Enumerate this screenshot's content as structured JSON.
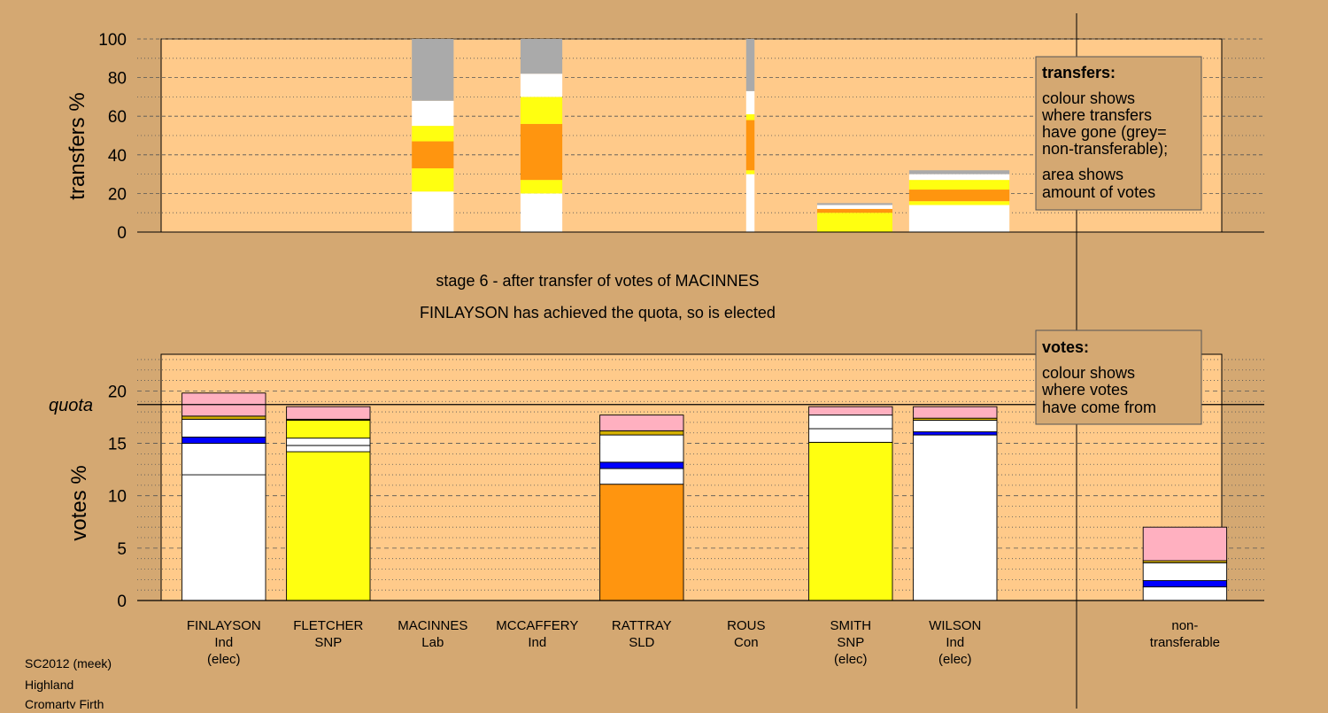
{
  "colors": {
    "page_bg": "#D4A872",
    "plot_bg": "#FFCA8A",
    "white": "#FFFFFF",
    "yellow": "#FFFF10",
    "orange": "#FF950F",
    "blue": "#0000FF",
    "pink": "#FFB0C0",
    "gold": "#D4B000",
    "grey": "#AAAAAA"
  },
  "titles": {
    "stage_line": "stage 6 - after transfer of votes of MACINNES",
    "status_line": "FINLAYSON has achieved the quota, so is elected"
  },
  "footer": [
    "SC2012 (meek)",
    "Highland",
    "Cromarty Firth"
  ],
  "legends": {
    "transfers": {
      "heading": "transfers:",
      "lines1": [
        "colour shows",
        "where transfers",
        "have gone (grey=",
        "non-transferable);"
      ],
      "lines2": [
        "area shows",
        "amount of votes"
      ]
    },
    "votes": {
      "heading": "votes:",
      "lines1": [
        "colour shows",
        "where votes",
        "have come from"
      ]
    }
  },
  "candidates": [
    {
      "name": "FINLAYSON",
      "party": "Ind",
      "note": "(elec)"
    },
    {
      "name": "FLETCHER",
      "party": "SNP",
      "note": ""
    },
    {
      "name": "MACINNES",
      "party": "Lab",
      "note": ""
    },
    {
      "name": "MCCAFFERY",
      "party": "Ind",
      "note": ""
    },
    {
      "name": "RATTRAY",
      "party": "SLD",
      "note": ""
    },
    {
      "name": "ROUS",
      "party": "Con",
      "note": ""
    },
    {
      "name": "SMITH",
      "party": "SNP",
      "note": "(elec)"
    },
    {
      "name": "WILSON",
      "party": "Ind",
      "note": "(elec)"
    },
    {
      "name": "non-",
      "party": "transferable",
      "note": ""
    }
  ],
  "chart_data": [
    {
      "type": "bar",
      "ylabel": "transfers %",
      "ylim": [
        0,
        100
      ],
      "yticks": [
        0,
        20,
        40,
        60,
        80,
        100
      ],
      "bars": [
        {
          "id": "macinnes-col1",
          "left": 3.0,
          "width": 0.5,
          "segments": [
            [
              "white",
              0,
              21
            ],
            [
              "yellow",
              21,
              33
            ],
            [
              "orange",
              33,
              47
            ],
            [
              "yellow",
              47,
              55
            ],
            [
              "white",
              55,
              68
            ],
            [
              "grey",
              68,
              100
            ]
          ]
        },
        {
          "id": "macinnes-col2",
          "left": 4.3,
          "width": 0.5,
          "segments": [
            [
              "white",
              0,
              20
            ],
            [
              "yellow",
              20,
              27
            ],
            [
              "orange",
              27,
              56
            ],
            [
              "yellow",
              56,
              70
            ],
            [
              "white",
              70,
              82
            ],
            [
              "grey",
              82,
              100
            ]
          ]
        },
        {
          "id": "macinnes-col3",
          "left": 7.0,
          "width": 0.1,
          "segments": [
            [
              "white",
              0,
              30
            ],
            [
              "yellow",
              30,
              32
            ],
            [
              "orange",
              32,
              58
            ],
            [
              "yellow",
              58,
              61
            ],
            [
              "white",
              61,
              73
            ],
            [
              "grey",
              73,
              100
            ]
          ]
        },
        {
          "id": "macinnes-col4",
          "left": 7.85,
          "width": 0.9,
          "segments": [
            [
              "yellow",
              0,
              10
            ],
            [
              "orange",
              10,
              12
            ],
            [
              "white",
              12,
              14
            ],
            [
              "grey",
              14,
              15
            ]
          ]
        },
        {
          "id": "macinnes-col5",
          "left": 8.95,
          "width": 1.2,
          "segments": [
            [
              "white",
              0,
              14
            ],
            [
              "yellow",
              14,
              16
            ],
            [
              "orange",
              16,
              22
            ],
            [
              "yellow",
              22,
              27
            ],
            [
              "white",
              27,
              30
            ],
            [
              "grey",
              30,
              32
            ]
          ]
        }
      ]
    },
    {
      "type": "bar",
      "ylabel": "votes %",
      "ylim": [
        0,
        23.5
      ],
      "yticks": [
        0,
        5,
        10,
        15,
        20
      ],
      "quota": 18.7,
      "quota_label": "quota",
      "bars": [
        {
          "id": "finlayson",
          "left": 0.25,
          "width": 1.0,
          "segments": [
            [
              "white",
              0,
              12
            ],
            [
              "white",
              12,
              15
            ],
            [
              "blue",
              15,
              15.6
            ],
            [
              "white",
              15.6,
              17.3
            ],
            [
              "gold",
              17.3,
              17.6
            ],
            [
              "pink",
              17.6,
              19.8
            ]
          ]
        },
        {
          "id": "fletcher",
          "left": 1.5,
          "width": 1.0,
          "segments": [
            [
              "yellow",
              0,
              14.2
            ],
            [
              "white",
              14.2,
              14.8
            ],
            [
              "white",
              14.8,
              15.5
            ],
            [
              "yellow",
              15.5,
              17.2
            ],
            [
              "gold",
              17.2,
              17.3
            ],
            [
              "pink",
              17.3,
              18.5
            ]
          ]
        },
        {
          "id": "rattray",
          "left": 5.25,
          "width": 1.0,
          "segments": [
            [
              "orange",
              0,
              11.1
            ],
            [
              "white",
              11.1,
              12.6
            ],
            [
              "blue",
              12.6,
              13.2
            ],
            [
              "white",
              13.2,
              15.8
            ],
            [
              "gold",
              15.8,
              16.2
            ],
            [
              "pink",
              16.2,
              17.7
            ]
          ]
        },
        {
          "id": "smith",
          "left": 7.75,
          "width": 1.0,
          "segments": [
            [
              "yellow",
              0,
              15.1
            ],
            [
              "white",
              15.1,
              16.4
            ],
            [
              "white",
              16.4,
              17.7
            ],
            [
              "pink",
              17.7,
              18.5
            ]
          ]
        },
        {
          "id": "wilson",
          "left": 9.0,
          "width": 1.0,
          "segments": [
            [
              "white",
              0,
              15.8
            ],
            [
              "blue",
              15.8,
              16.1
            ],
            [
              "white",
              16.1,
              17.2
            ],
            [
              "gold",
              17.2,
              17.4
            ],
            [
              "pink",
              17.4,
              18.5
            ]
          ]
        },
        {
          "id": "non-transferable",
          "left": 11.75,
          "width": 1.0,
          "segments": [
            [
              "white",
              0,
              1.3
            ],
            [
              "blue",
              1.3,
              1.9
            ],
            [
              "white",
              1.9,
              3.6
            ],
            [
              "gold",
              3.6,
              3.8
            ],
            [
              "pink",
              3.8,
              7.0
            ]
          ]
        }
      ]
    }
  ]
}
